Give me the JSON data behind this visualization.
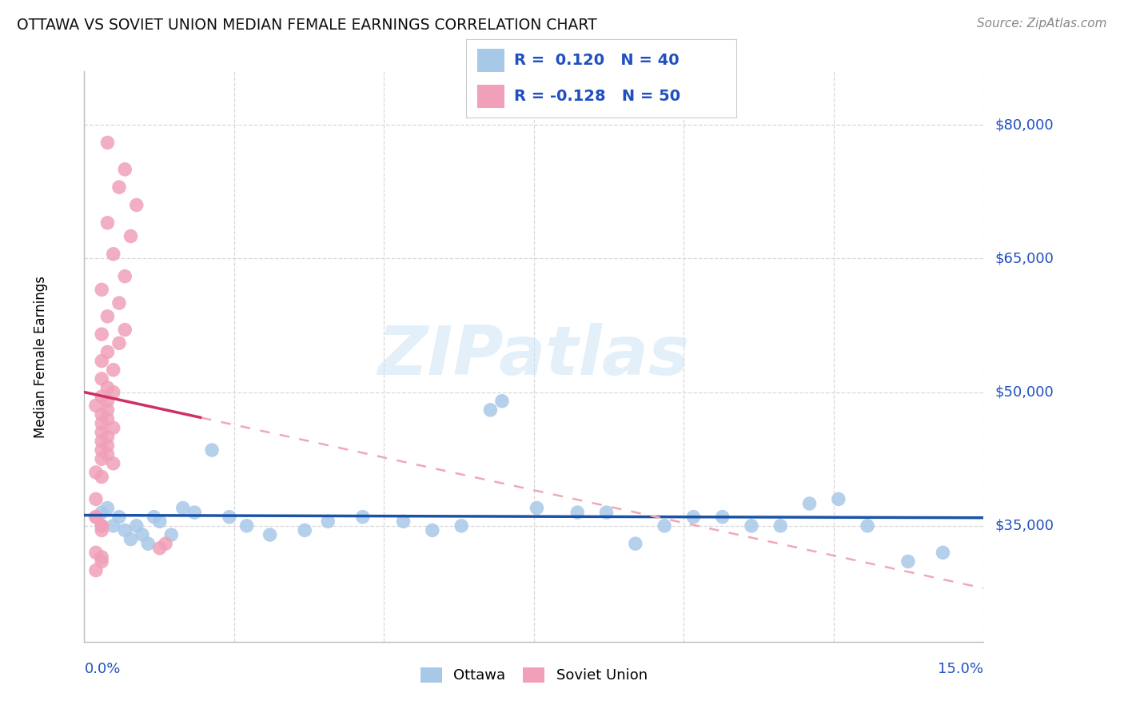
{
  "title": "OTTAWA VS SOVIET UNION MEDIAN FEMALE EARNINGS CORRELATION CHART",
  "source": "Source: ZipAtlas.com",
  "ylabel": "Median Female Earnings",
  "ytick_values": [
    35000,
    50000,
    65000,
    80000
  ],
  "ytick_labels": [
    "$35,000",
    "$50,000",
    "$65,000",
    "$80,000"
  ],
  "x_min": 0.0,
  "x_max": 0.155,
  "y_min": 22000,
  "y_max": 86000,
  "watermark_text": "ZIPatlas",
  "ottawa_color": "#a8c8e8",
  "soviet_color": "#f0a0b8",
  "ottawa_line_color": "#1a52a8",
  "soviet_line_solid_color": "#d03060",
  "soviet_line_dash_color": "#f0a8b8",
  "grid_color": "#d8d8d8",
  "axis_label_color": "#2050c0",
  "title_color": "#111111",
  "source_color": "#888888",
  "background_color": "#ffffff",
  "legend_R1": "R =  0.120",
  "legend_N1": "N = 40",
  "legend_R2": "R = -0.128",
  "legend_N2": "N = 50",
  "ottawa_x": [
    0.003,
    0.004,
    0.005,
    0.006,
    0.007,
    0.008,
    0.009,
    0.01,
    0.011,
    0.012,
    0.013,
    0.015,
    0.017,
    0.019,
    0.022,
    0.025,
    0.028,
    0.032,
    0.038,
    0.042,
    0.048,
    0.055,
    0.06,
    0.065,
    0.07,
    0.072,
    0.078,
    0.085,
    0.09,
    0.095,
    0.1,
    0.105,
    0.11,
    0.115,
    0.12,
    0.125,
    0.13,
    0.135,
    0.142,
    0.148
  ],
  "ottawa_y": [
    36500,
    37000,
    35000,
    36000,
    34500,
    33500,
    35000,
    34000,
    33000,
    36000,
    35500,
    34000,
    37000,
    36500,
    43500,
    36000,
    35000,
    34000,
    34500,
    35500,
    36000,
    35500,
    34500,
    35000,
    48000,
    49000,
    37000,
    36500,
    36500,
    33000,
    35000,
    36000,
    36000,
    35000,
    35000,
    37500,
    38000,
    35000,
    31000,
    32000
  ],
  "soviet_x": [
    0.004,
    0.007,
    0.006,
    0.009,
    0.004,
    0.008,
    0.005,
    0.007,
    0.003,
    0.006,
    0.004,
    0.007,
    0.003,
    0.006,
    0.004,
    0.003,
    0.005,
    0.003,
    0.004,
    0.005,
    0.003,
    0.004,
    0.002,
    0.004,
    0.003,
    0.004,
    0.003,
    0.005,
    0.003,
    0.004,
    0.003,
    0.004,
    0.003,
    0.004,
    0.003,
    0.005,
    0.002,
    0.003,
    0.002,
    0.003,
    0.002,
    0.003,
    0.002,
    0.003,
    0.002,
    0.003,
    0.002,
    0.003,
    0.014,
    0.013
  ],
  "soviet_y": [
    78000,
    75000,
    73000,
    71000,
    69000,
    67500,
    65500,
    63000,
    61500,
    60000,
    58500,
    57000,
    56500,
    55500,
    54500,
    53500,
    52500,
    51500,
    50500,
    50000,
    49500,
    49000,
    48500,
    48000,
    47500,
    47000,
    46500,
    46000,
    45500,
    45000,
    44500,
    44000,
    43500,
    43000,
    42500,
    42000,
    41000,
    40500,
    36000,
    35000,
    38000,
    34500,
    32000,
    31500,
    36000,
    35000,
    30000,
    31000,
    33000,
    32500
  ]
}
